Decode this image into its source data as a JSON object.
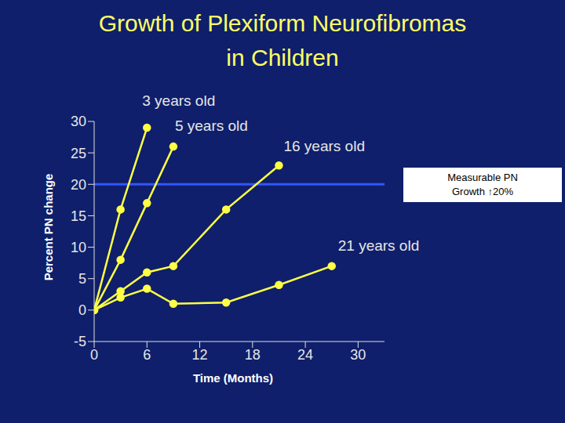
{
  "chart_data": {
    "type": "line",
    "title": "Growth of Plexiform Neurofibromas in Children",
    "x_label": "Time (Months)",
    "y_label": "Percent PN change",
    "xlim": [
      0,
      33
    ],
    "xticks": [
      0,
      6,
      12,
      18,
      24,
      30
    ],
    "ylim": [
      -5,
      30
    ],
    "yticks": [
      -5,
      0,
      5,
      10,
      15,
      20,
      25,
      30
    ],
    "color": "#ffff44",
    "marker": "circle",
    "threshold": 20,
    "threshold_color": "#3355ff",
    "annotation": [
      "Measurable PN",
      "Growth ↑20%"
    ],
    "series": [
      {
        "name": "3 years old",
        "x": [
          0,
          3,
          6
        ],
        "values": [
          0,
          16,
          29
        ]
      },
      {
        "name": "5 years old",
        "x": [
          0,
          3,
          6,
          9
        ],
        "values": [
          0,
          8,
          17,
          26
        ]
      },
      {
        "name": "16 years old",
        "x": [
          0,
          3,
          6,
          9,
          15,
          21
        ],
        "values": [
          0,
          3,
          6,
          7,
          16,
          23
        ]
      },
      {
        "name": "21 years old",
        "x": [
          0,
          3,
          6,
          9,
          15,
          21,
          27
        ],
        "values": [
          0,
          2,
          3.4,
          1,
          1.2,
          4,
          7
        ]
      }
    ]
  }
}
